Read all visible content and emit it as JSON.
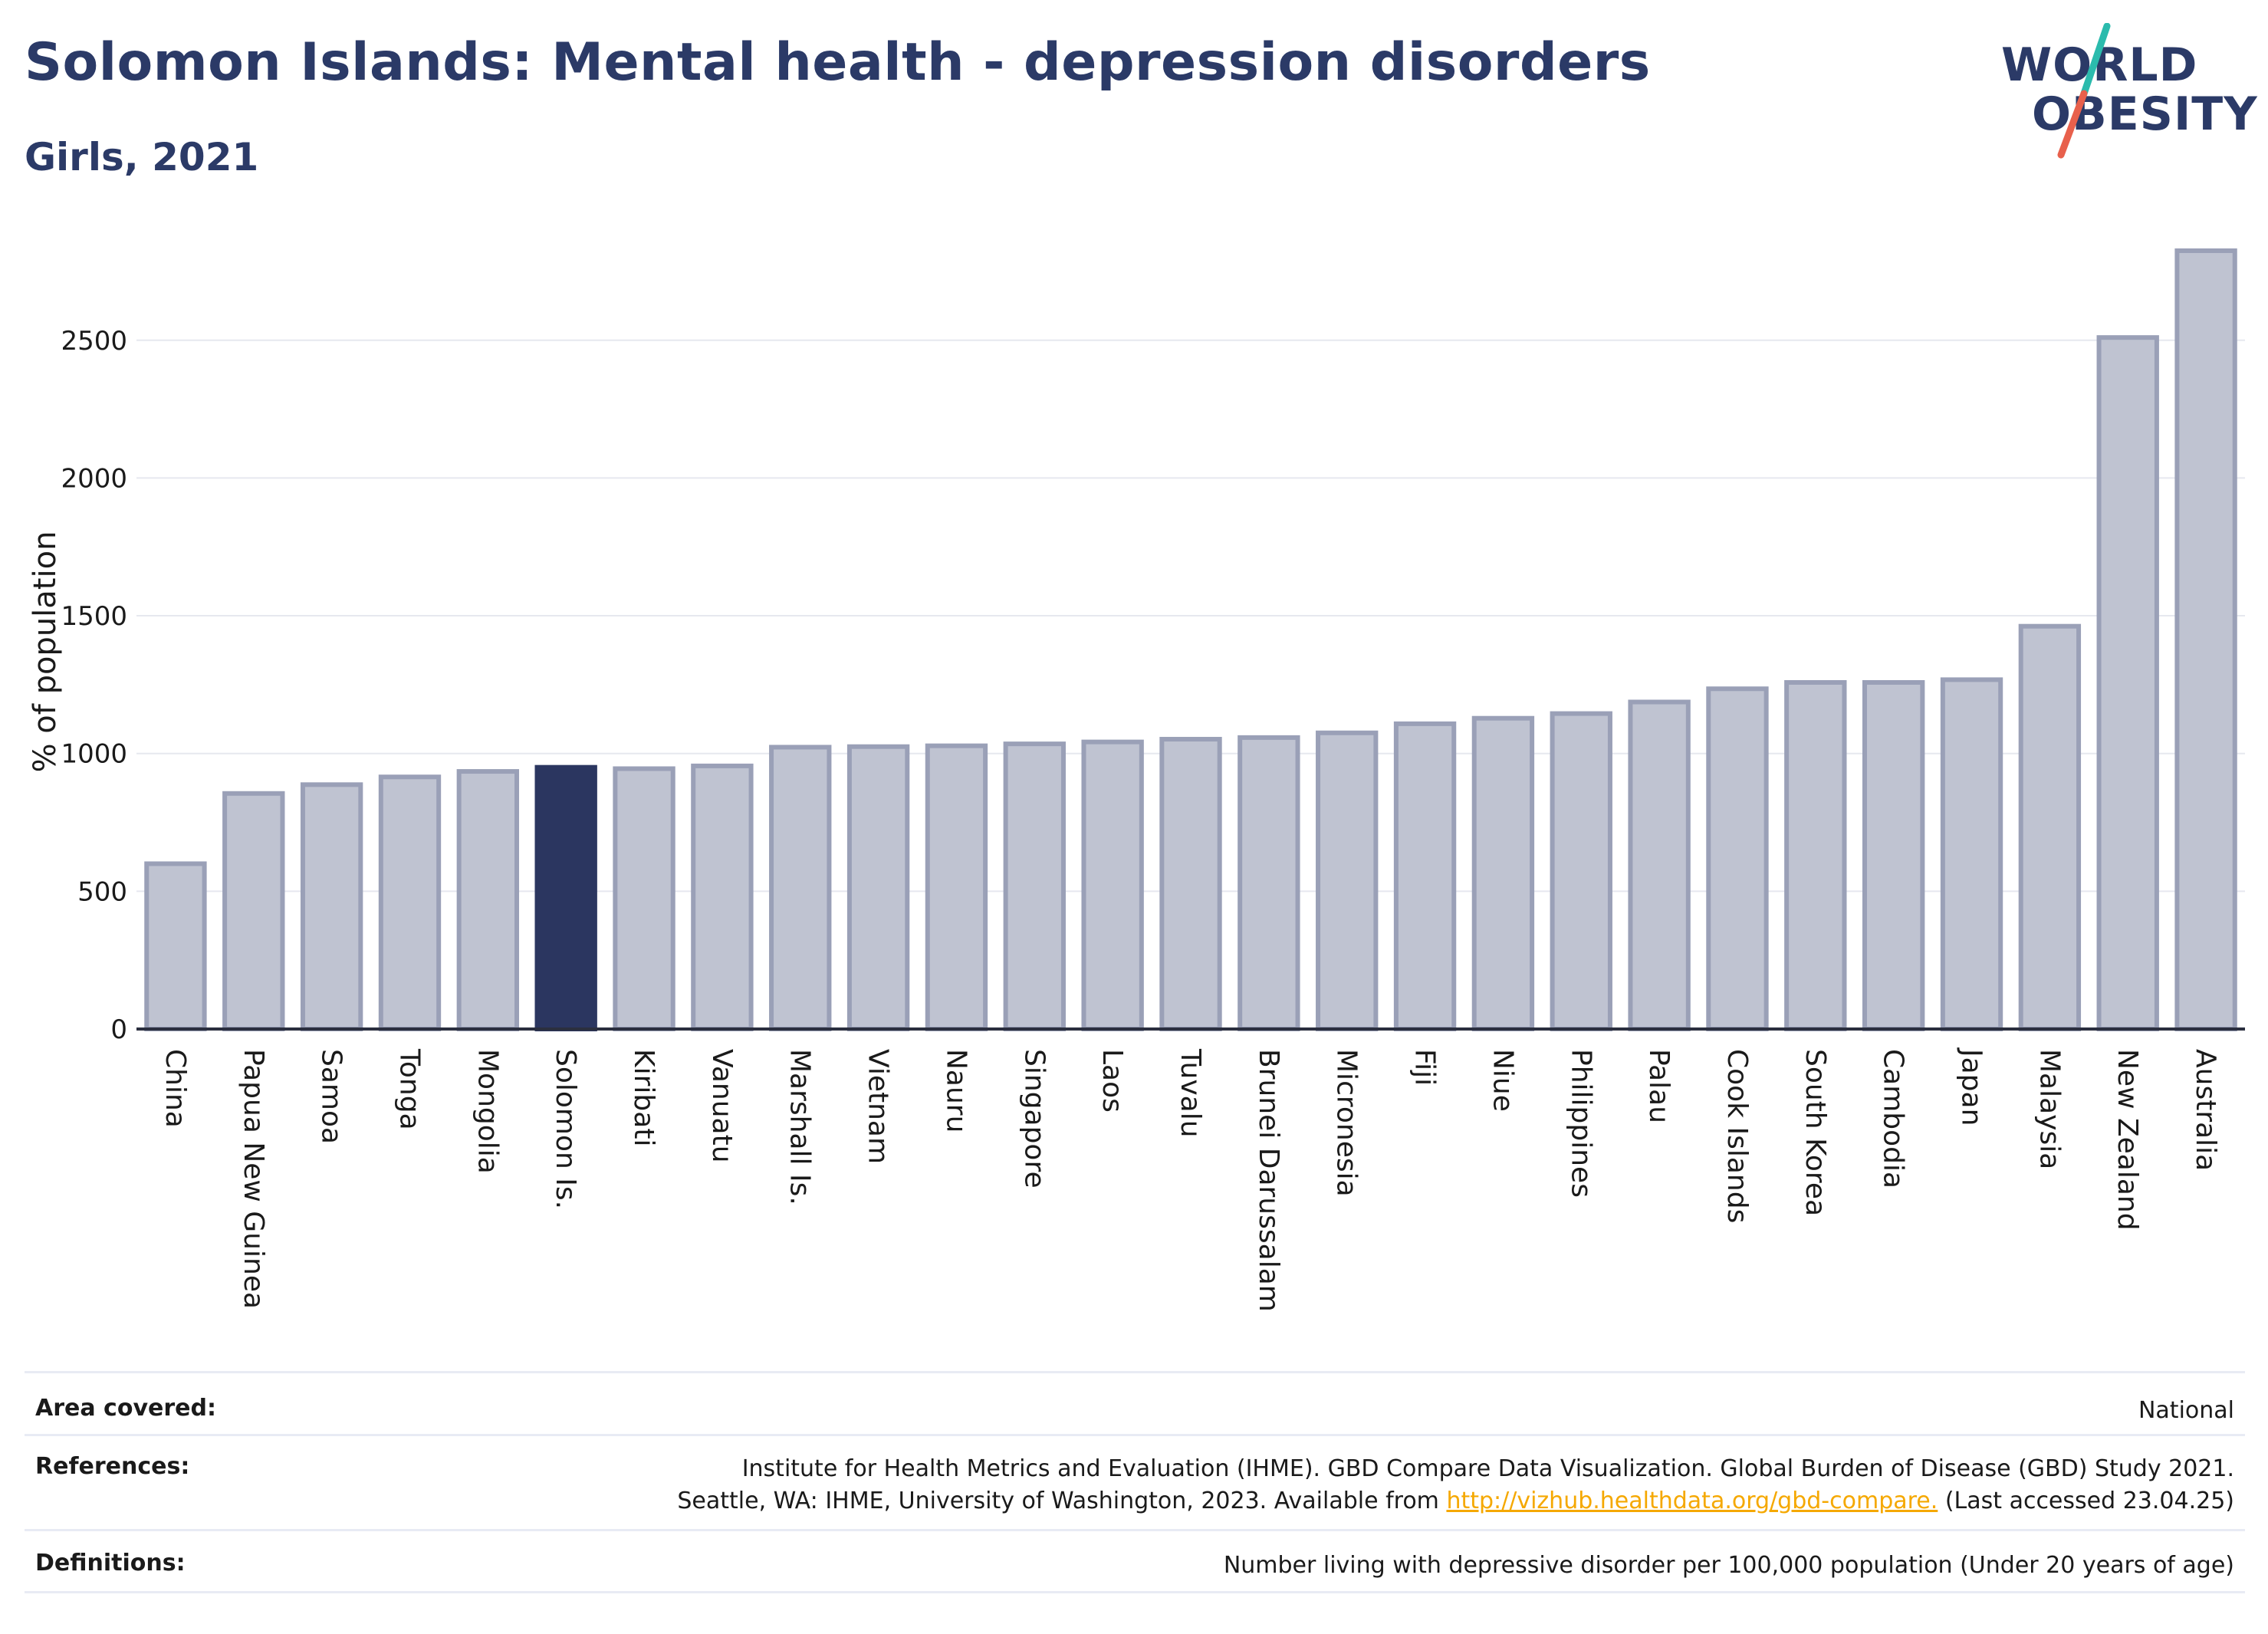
{
  "header": {
    "title": "Solomon Islands: Mental health - depression disorders",
    "subtitle": "Girls, 2021"
  },
  "logo": {
    "line1": "WORLD",
    "line2": "OBESITY",
    "accent_teal": "#2bbbad",
    "accent_coral": "#e8604c"
  },
  "colors": {
    "bar_default": "#bfc3d1",
    "bar_border": "#9aa0b7",
    "bar_highlight": "#2b3660",
    "title": "#2b3a67",
    "link": "#f5a800"
  },
  "chart_data": {
    "type": "bar",
    "ylabel": "% of population",
    "xlabel": "",
    "ylim": [
      0,
      2850
    ],
    "yticks": [
      0,
      500,
      1000,
      1500,
      2000,
      2500
    ],
    "grid": true,
    "highlight": "Solomon Is.",
    "categories": [
      "China",
      "Papua New Guinea",
      "Samoa",
      "Tonga",
      "Mongolia",
      "Solomon Is.",
      "Kiribati",
      "Vanuatu",
      "Marshall Is.",
      "Vietnam",
      "Nauru",
      "Singapore",
      "Laos",
      "Tuvalu",
      "Brunei Darussalam",
      "Micronesia",
      "Fiji",
      "Niue",
      "Philippines",
      "Palau",
      "Cook Islands",
      "South Korea",
      "Cambodia",
      "Japan",
      "Malaysia",
      "New Zealand",
      "Australia"
    ],
    "values": [
      600,
      855,
      887,
      915,
      935,
      950,
      945,
      955,
      1023,
      1025,
      1028,
      1035,
      1042,
      1052,
      1058,
      1075,
      1108,
      1128,
      1145,
      1187,
      1235,
      1258,
      1258,
      1268,
      1462,
      2510,
      2825
    ]
  },
  "info": {
    "area_label": "Area covered:",
    "area_value": "National",
    "ref_label": "References:",
    "ref_line1": "Institute for Health Metrics and Evaluation (IHME). GBD Compare Data Visualization. Global Burden of Disease (GBD) Study 2021.",
    "ref_line2_pre": "Seattle, WA: IHME, University of Washington, 2023. Available from ",
    "ref_link": "http://vizhub.healthdata.org/gbd-compare.",
    "ref_line2_post": " (Last accessed 23.04.25)",
    "def_label": "Definitions:",
    "def_value": "Number living with depressive disorder per 100,000 population (Under 20 years of age)"
  }
}
